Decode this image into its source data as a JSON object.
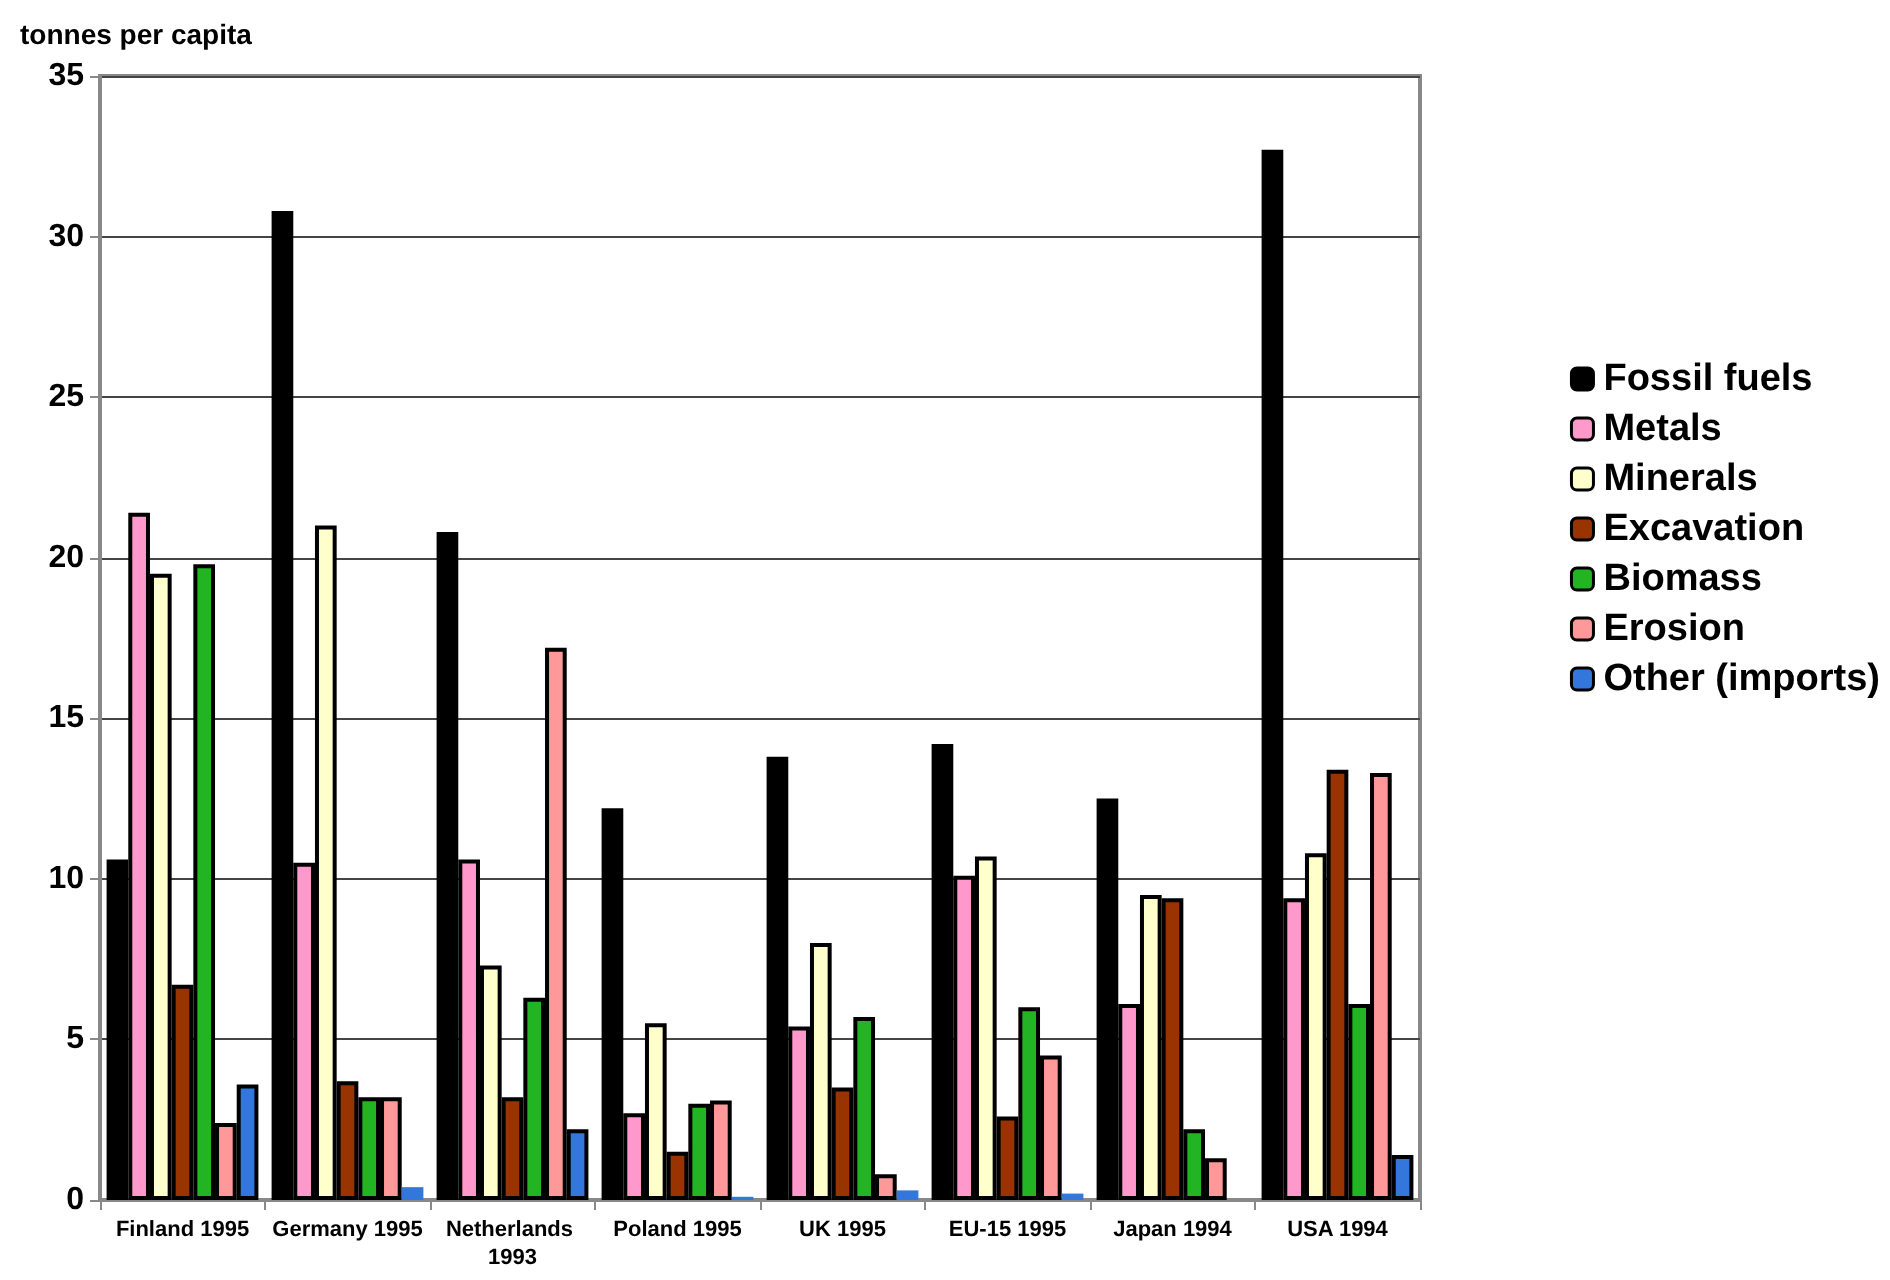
{
  "chart_data": {
    "type": "bar",
    "ylabel": "tonnes per capita",
    "categories": [
      "Finland 1995",
      "Germany 1995",
      "Netherlands 1993",
      "Poland 1995",
      "UK 1995",
      "EU-15 1995",
      "Japan 1994",
      "USA 1994"
    ],
    "series": [
      {
        "name": "Fossil fuels",
        "color": "#000000",
        "values": [
          10.6,
          30.8,
          20.8,
          12.2,
          13.8,
          14.2,
          12.5,
          32.7
        ]
      },
      {
        "name": "Metals",
        "color": "#ff99cc",
        "values": [
          21.4,
          10.5,
          10.6,
          2.7,
          5.4,
          10.1,
          6.1,
          9.4
        ]
      },
      {
        "name": "Minerals",
        "color": "#ffffcc",
        "values": [
          19.5,
          21.0,
          7.3,
          5.5,
          8.0,
          10.7,
          9.5,
          10.8
        ]
      },
      {
        "name": "Excavation",
        "color": "#993300",
        "values": [
          6.7,
          3.7,
          3.2,
          1.5,
          3.5,
          2.6,
          9.4,
          13.4
        ]
      },
      {
        "name": "Biomass",
        "color": "#22b422",
        "values": [
          19.8,
          3.2,
          6.3,
          3.0,
          5.7,
          6.0,
          2.2,
          6.1
        ]
      },
      {
        "name": "Erosion",
        "color": "#ff9999",
        "values": [
          2.4,
          3.2,
          17.2,
          3.1,
          0.8,
          4.5,
          1.3,
          13.3
        ]
      },
      {
        "name": "Other (imports)",
        "color": "#3377dd",
        "values": [
          3.6,
          0.4,
          2.2,
          0.1,
          0.3,
          0.2,
          0.0,
          1.4
        ]
      }
    ],
    "ylim": [
      0,
      35
    ],
    "yticks": [
      0,
      5,
      10,
      15,
      20,
      25,
      30,
      35
    ],
    "grid": "y",
    "legend": "right"
  }
}
